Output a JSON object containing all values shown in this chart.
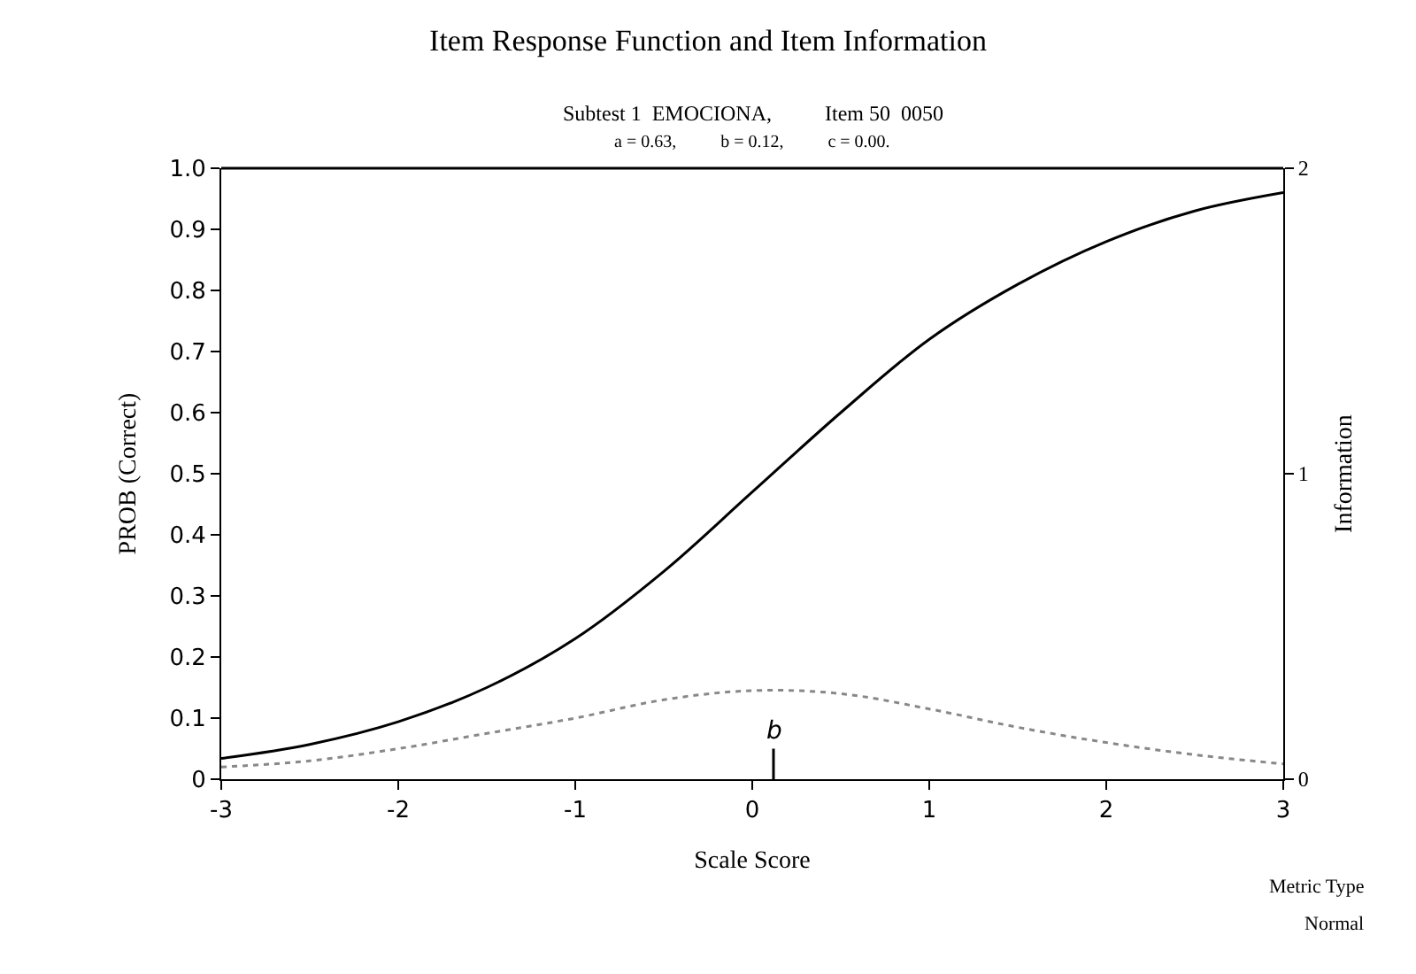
{
  "chart_data": {
    "type": "line",
    "title": "Item Response Function and Item Information",
    "subtitle": "Subtest 1  EMOCIONA,          Item 50  0050",
    "x": [
      -3,
      -2.5,
      -2,
      -1.5,
      -1,
      -0.5,
      0,
      0.5,
      1,
      1.5,
      2,
      2.5,
      3
    ],
    "series": [
      {
        "color": "#000000",
        "line_style": "solid",
        "values": [
          0.034,
          0.057,
          0.094,
          0.15,
          0.23,
          0.34,
          0.47,
          0.6,
          0.72,
          0.81,
          0.88,
          0.93,
          0.96
        ]
      },
      {
        "color": "#888888",
        "line_style": "dotted",
        "axis": "y2",
        "values": [
          0.04,
          0.06,
          0.1,
          0.15,
          0.2,
          0.26,
          0.29,
          0.28,
          0.23,
          0.17,
          0.12,
          0.08,
          0.05
        ]
      }
    ],
    "xlabel": "Scale Score",
    "ylabel": "PROB (Correct)",
    "y2label": "Information",
    "xlim": [
      -3,
      3
    ],
    "xticks": [
      -3,
      -2,
      -1,
      0,
      1,
      2,
      3
    ],
    "ylim": [
      0,
      1
    ],
    "yticks": [
      0,
      0.1,
      0.2,
      0.3,
      0.4,
      0.5,
      0.6,
      0.7,
      0.8,
      0.9,
      {
        "value": 1,
        "label": "1.0"
      }
    ],
    "y2lim": [
      0,
      2
    ],
    "y2ticks": [
      0,
      1,
      2
    ],
    "ref_lines": [
      {
        "axis": "x",
        "value": 0.12,
        "label": "b",
        "color": "#000000"
      }
    ],
    "annotations": [
      "a = 0.63,          b = 0.12,          c = 0.00.",
      "Metric Type",
      "Normal"
    ],
    "marker": "none"
  }
}
